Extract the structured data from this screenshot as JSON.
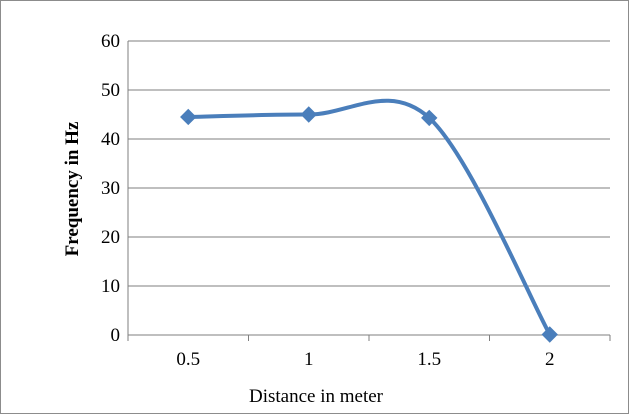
{
  "chart_data": {
    "type": "line",
    "smooth": true,
    "categories": [
      "0.5",
      "1",
      "1.5",
      "2"
    ],
    "series": [
      {
        "values": [
          44.5,
          45.0,
          44.3,
          0.1
        ]
      }
    ],
    "xlabel": "Distance in meter",
    "ylabel": "Frequency in Hz",
    "ylim": [
      0,
      60
    ],
    "yticks": [
      0,
      10,
      20,
      30,
      40,
      50,
      60
    ],
    "grid": "horizontal",
    "legend": "none",
    "marker": "diamond",
    "colors": {
      "series": "#4a7ebb",
      "grid": "#7f7f7f",
      "axis": "#7f7f7f"
    }
  }
}
